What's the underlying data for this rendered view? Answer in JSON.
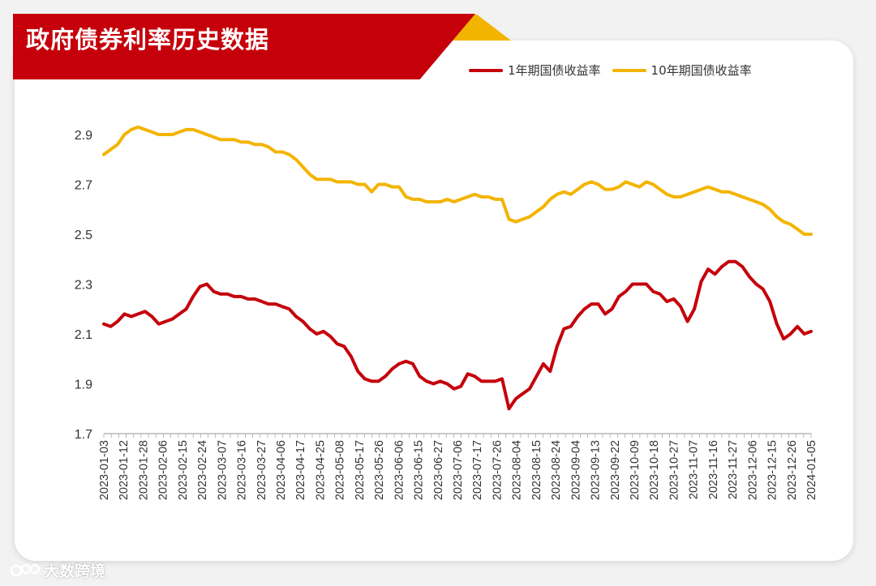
{
  "title": "政府债券利率历史数据",
  "watermark_text": "大数跨境",
  "colors": {
    "banner": "#c5000b",
    "accent": "#f3b400",
    "series1": "#c5000b",
    "series2": "#f3b400"
  },
  "chart_data": {
    "type": "line",
    "title": "政府债券利率历史数据",
    "xlabel": "",
    "ylabel": "",
    "ylim": [
      1.7,
      2.95
    ],
    "yticks": [
      "2.9",
      "2.7",
      "2.5",
      "2.3",
      "2.1",
      "1.9",
      "1.7"
    ],
    "grid": false,
    "legend": "top-right",
    "x_tick_labels": [
      "2023-01-03",
      "2023-01-12",
      "2023-01-28",
      "2023-02-06",
      "2023-02-15",
      "2023-02-24",
      "2023-03-07",
      "2023-03-16",
      "2023-03-27",
      "2023-04-06",
      "2023-04-17",
      "2023-04-25",
      "2023-05-08",
      "2023-05-17",
      "2023-05-26",
      "2023-06-06",
      "2023-06-15",
      "2023-06-27",
      "2023-07-06",
      "2023-07-17",
      "2023-07-26",
      "2023-08-04",
      "2023-08-15",
      "2023-08-24",
      "2023-09-04",
      "2023-09-13",
      "2023-09-22",
      "2023-10-09",
      "2023-10-18",
      "2023-10-27",
      "2023-11-07",
      "2023-11-16",
      "2023-11-27",
      "2023-12-06",
      "2023-12-15",
      "2023-12-26",
      "2024-01-05"
    ],
    "series": [
      {
        "name": "1年期国债收益率",
        "values": [
          2.14,
          2.13,
          2.15,
          2.18,
          2.17,
          2.18,
          2.19,
          2.17,
          2.14,
          2.15,
          2.16,
          2.18,
          2.2,
          2.25,
          2.29,
          2.3,
          2.27,
          2.26,
          2.26,
          2.25,
          2.25,
          2.24,
          2.24,
          2.23,
          2.22,
          2.22,
          2.21,
          2.2,
          2.17,
          2.15,
          2.12,
          2.1,
          2.11,
          2.09,
          2.06,
          2.05,
          2.01,
          1.95,
          1.92,
          1.91,
          1.91,
          1.93,
          1.96,
          1.98,
          1.99,
          1.98,
          1.93,
          1.91,
          1.9,
          1.91,
          1.9,
          1.88,
          1.89,
          1.94,
          1.93,
          1.91,
          1.91,
          1.91,
          1.92,
          1.8,
          1.84,
          1.86,
          1.88,
          1.93,
          1.98,
          1.95,
          2.05,
          2.12,
          2.13,
          2.17,
          2.2,
          2.22,
          2.22,
          2.18,
          2.2,
          2.25,
          2.27,
          2.3,
          2.3,
          2.3,
          2.27,
          2.26,
          2.23,
          2.24,
          2.21,
          2.15,
          2.2,
          2.31,
          2.36,
          2.34,
          2.37,
          2.39,
          2.39,
          2.37,
          2.33,
          2.3,
          2.28,
          2.23,
          2.14,
          2.08,
          2.1,
          2.13,
          2.1,
          2.11
        ]
      },
      {
        "name": "10年期国债收益率",
        "values": [
          2.82,
          2.84,
          2.86,
          2.9,
          2.92,
          2.93,
          2.92,
          2.91,
          2.9,
          2.9,
          2.9,
          2.91,
          2.92,
          2.92,
          2.91,
          2.9,
          2.89,
          2.88,
          2.88,
          2.88,
          2.87,
          2.87,
          2.86,
          2.86,
          2.85,
          2.83,
          2.83,
          2.82,
          2.8,
          2.77,
          2.74,
          2.72,
          2.72,
          2.72,
          2.71,
          2.71,
          2.71,
          2.7,
          2.7,
          2.67,
          2.7,
          2.7,
          2.69,
          2.69,
          2.65,
          2.64,
          2.64,
          2.63,
          2.63,
          2.63,
          2.64,
          2.63,
          2.64,
          2.65,
          2.66,
          2.65,
          2.65,
          2.64,
          2.64,
          2.56,
          2.55,
          2.56,
          2.57,
          2.59,
          2.61,
          2.64,
          2.66,
          2.67,
          2.66,
          2.68,
          2.7,
          2.71,
          2.7,
          2.68,
          2.68,
          2.69,
          2.71,
          2.7,
          2.69,
          2.71,
          2.7,
          2.68,
          2.66,
          2.65,
          2.65,
          2.66,
          2.67,
          2.68,
          2.69,
          2.68,
          2.67,
          2.67,
          2.66,
          2.65,
          2.64,
          2.63,
          2.62,
          2.6,
          2.57,
          2.55,
          2.54,
          2.52,
          2.5,
          2.5
        ]
      }
    ]
  }
}
